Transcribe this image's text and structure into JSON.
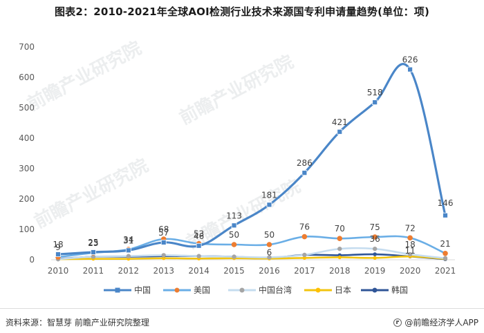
{
  "title": "图表2：2010-2021年全球AOI检测行业技术来源国专利申请量趋势(单位：项)",
  "source": "资料来源：智慧芽 前瞻产业研究院整理",
  "app_label": "@前瞻经济学人APP",
  "watermark_text": "前瞻产业研究院",
  "chart_data": {
    "type": "line",
    "title": "图表2：2010-2021年全球AOI检测行业技术来源国专利申请量趋势(单位：项)",
    "xlabel": "",
    "ylabel": "",
    "x": [
      "2010",
      "2011",
      "2012",
      "2013",
      "2014",
      "2015",
      "2016",
      "2017",
      "2018",
      "2019",
      "2020",
      "2021"
    ],
    "ylim": [
      0,
      700
    ],
    "yticks": [
      0,
      100,
      200,
      300,
      400,
      500,
      600,
      700
    ],
    "grid": false,
    "legend_position": "bottom",
    "series": [
      {
        "name": "中国",
        "color": "#4a86c8",
        "marker": "square",
        "values": [
          18,
          25,
          31,
          57,
          46,
          113,
          181,
          286,
          421,
          518,
          626,
          146
        ],
        "labels": [
          "18",
          "25",
          "31",
          "57",
          "46",
          "113",
          "181",
          "286",
          "421",
          "518",
          "626",
          "146"
        ]
      },
      {
        "name": "美国",
        "color": "#6aaee6",
        "marker": "circle",
        "values": [
          9,
          23,
          34,
          68,
          53,
          50,
          50,
          76,
          70,
          75,
          72,
          21
        ],
        "labels": [
          "9",
          "23",
          "34",
          "68",
          "53",
          "50",
          "50",
          "76",
          "70",
          "75",
          "72",
          "21"
        ]
      },
      {
        "name": "中国台湾",
        "color": "#c5dcef",
        "marker": "circle",
        "values": [
          2,
          10,
          12,
          15,
          12,
          10,
          8,
          16,
          36,
          36,
          18,
          5
        ],
        "labels": [
          "",
          "",
          "",
          "",
          "",
          "",
          "",
          "",
          "",
          "36",
          "18",
          ""
        ]
      },
      {
        "name": "日本",
        "color": "#f2c40f",
        "marker": "circle",
        "values": [
          2,
          3,
          3,
          5,
          4,
          5,
          4,
          6,
          8,
          6,
          11,
          3
        ],
        "labels": [
          "",
          "",
          "",
          "",
          "",
          "",
          "",
          "",
          "",
          "",
          "11",
          ""
        ]
      },
      {
        "name": "韩国",
        "color": "#2f5597",
        "marker": "circle",
        "values": [
          3,
          10,
          10,
          12,
          12,
          10,
          6,
          16,
          15,
          18,
          11,
          2
        ],
        "labels": [
          "",
          "",
          "",
          "",
          "",
          "",
          "6",
          "",
          "",
          "",
          "",
          ""
        ]
      }
    ]
  }
}
